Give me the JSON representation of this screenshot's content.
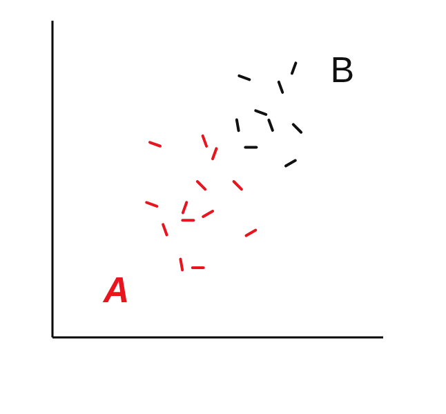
{
  "chart_data": {
    "type": "scatter",
    "xlim": [
      0,
      100
    ],
    "ylim": [
      0,
      100
    ],
    "xticks": [],
    "yticks": [],
    "tick_labels": false,
    "grid": false,
    "marker": "dash",
    "series": [
      {
        "name": "A",
        "color": "#e8141e",
        "x": [
          31,
          46,
          49,
          56,
          60,
          44,
          39,
          30,
          34,
          40,
          45,
          47,
          41
        ],
        "values": [
          61,
          62,
          58,
          48,
          33,
          22,
          23,
          42,
          34,
          41,
          48,
          39,
          37
        ]
      },
      {
        "name": "B",
        "color": "#111111",
        "x": [
          58,
          69,
          73,
          74,
          72,
          60,
          56,
          63,
          66
        ],
        "values": [
          82,
          79,
          85,
          66,
          55,
          60,
          67,
          71,
          67
        ]
      }
    ]
  }
}
